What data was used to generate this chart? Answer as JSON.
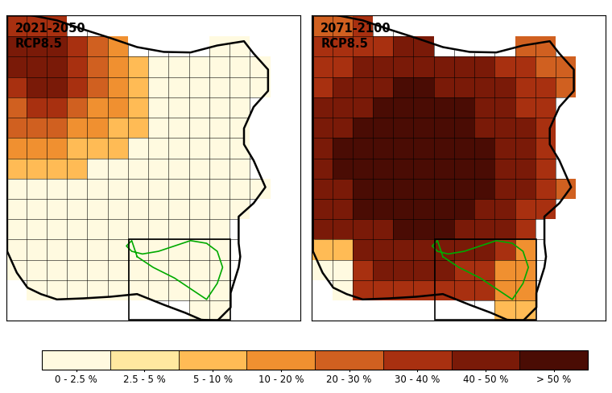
{
  "title_left": "2021-2050\nRCP8.5",
  "title_right": "2071-2100\nRCP8.5",
  "colorbar_labels": [
    "0 - 2.5 %",
    "2.5 - 5 %",
    "5 - 10 %",
    "10 - 20 %",
    "20 - 30 %",
    "30 - 40 %",
    "40 - 50 %",
    "> 50 %"
  ],
  "colorbar_colors": [
    "#FFFAE0",
    "#FFE8A0",
    "#FFBB55",
    "#F09030",
    "#D06020",
    "#A83010",
    "#7A1A08",
    "#4A0C04"
  ],
  "colorbar_bounds": [
    0,
    2.5,
    5,
    10,
    20,
    30,
    40,
    50,
    100
  ],
  "figsize": [
    7.6,
    4.88
  ],
  "dpi": 100,
  "background_color": "#FFFFFF"
}
